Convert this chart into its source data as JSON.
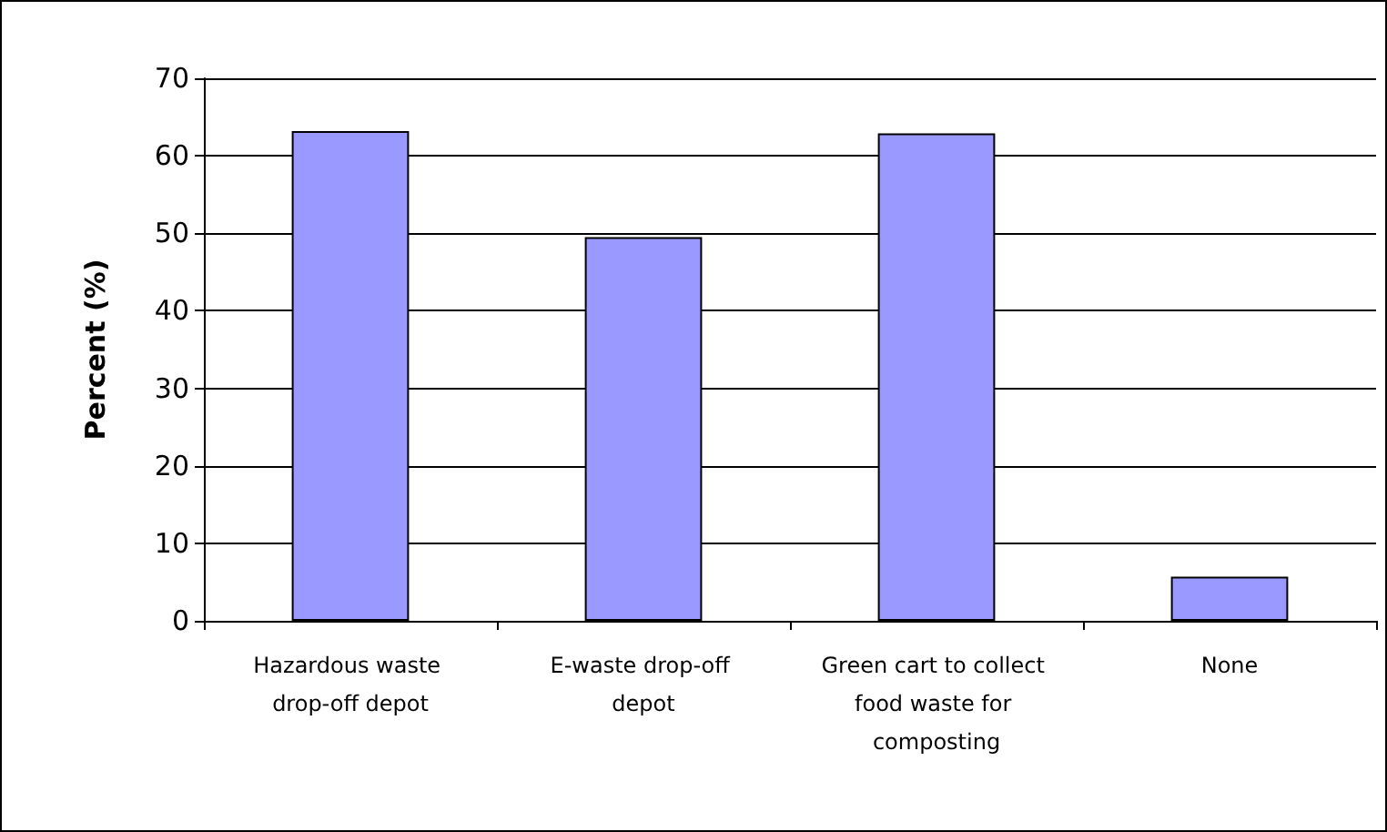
{
  "chart_data": {
    "type": "bar",
    "ylabel": "Percent (%)",
    "categories": [
      "Hazardous waste drop-off depot",
      "E-waste drop-off depot",
      "Green cart to collect food waste for composting",
      "None"
    ],
    "values": [
      63.2,
      49.5,
      62.9,
      5.7
    ],
    "color": "#9999ff",
    "ylim": [
      0,
      70
    ],
    "yticks": [
      0,
      10,
      20,
      30,
      40,
      50,
      60,
      70
    ],
    "grid": "y"
  }
}
